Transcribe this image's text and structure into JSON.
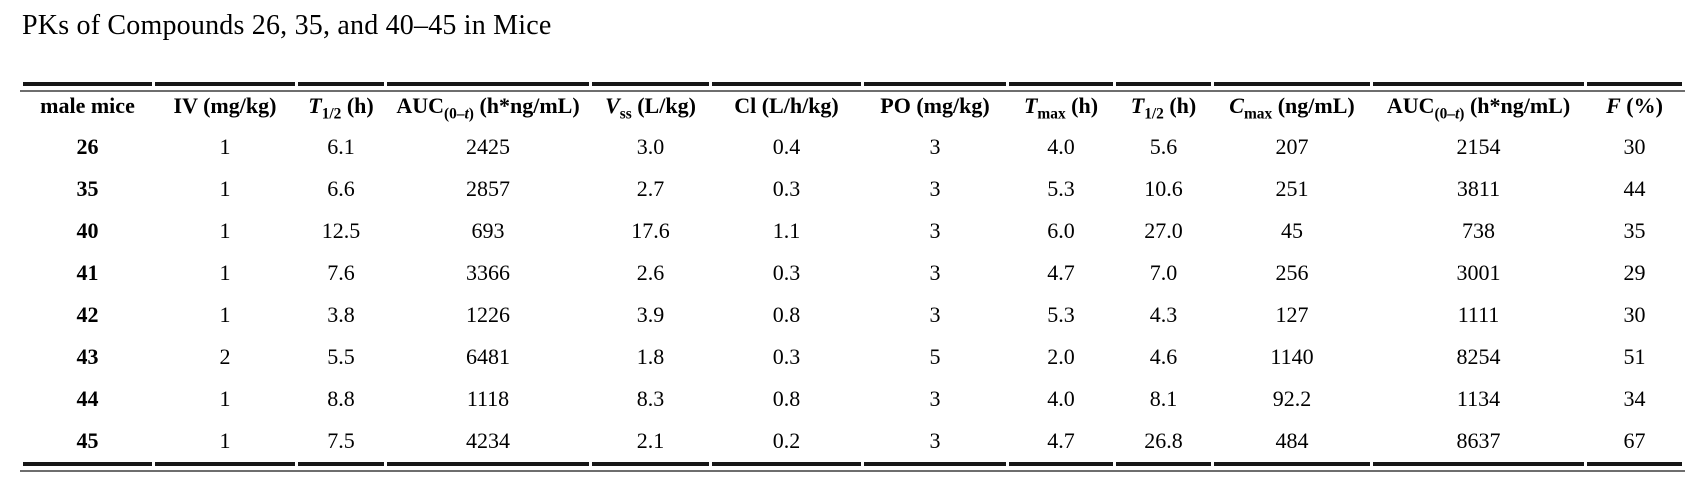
{
  "title": "PKs of Compounds 26, 35, and 40–45 in Mice",
  "colors": {
    "page_background": "#ffffff",
    "text": "#000000",
    "rule": "#161616"
  },
  "table": {
    "headers": [
      {
        "segments": [
          {
            "t": "male mice"
          }
        ]
      },
      {
        "segments": [
          {
            "t": "IV (mg/kg)"
          }
        ]
      },
      {
        "segments": [
          {
            "t": "T",
            "i": true
          },
          {
            "t": "1/2",
            "sub": true
          },
          {
            "t": " (h)"
          }
        ]
      },
      {
        "segments": [
          {
            "t": "AUC"
          },
          {
            "t": "(0–",
            "sub": true
          },
          {
            "t": "t",
            "sub": true,
            "i": true
          },
          {
            "t": ")",
            "sub": true
          },
          {
            "t": " (h*ng/mL)"
          }
        ]
      },
      {
        "segments": [
          {
            "t": "V",
            "i": true
          },
          {
            "t": "ss",
            "sub": true
          },
          {
            "t": " (L/kg)"
          }
        ]
      },
      {
        "segments": [
          {
            "t": "Cl (L/h/kg)"
          }
        ]
      },
      {
        "segments": [
          {
            "t": "PO (mg/kg)"
          }
        ]
      },
      {
        "segments": [
          {
            "t": "T",
            "i": true
          },
          {
            "t": "max",
            "sub": true
          },
          {
            "t": " (h)"
          }
        ]
      },
      {
        "segments": [
          {
            "t": "T",
            "i": true
          },
          {
            "t": "1/2",
            "sub": true
          },
          {
            "t": " (h)"
          }
        ]
      },
      {
        "segments": [
          {
            "t": "C",
            "i": true
          },
          {
            "t": "max",
            "sub": true
          },
          {
            "t": " (ng/mL)"
          }
        ]
      },
      {
        "segments": [
          {
            "t": "AUC"
          },
          {
            "t": "(0–",
            "sub": true
          },
          {
            "t": "t",
            "sub": true,
            "i": true
          },
          {
            "t": ")",
            "sub": true
          },
          {
            "t": " (h*ng/mL)"
          }
        ]
      },
      {
        "segments": [
          {
            "t": "F",
            "i": true
          },
          {
            "t": " (%)"
          }
        ]
      }
    ],
    "rows": [
      {
        "compound": "26",
        "values": [
          "1",
          "6.1",
          "2425",
          "3.0",
          "0.4",
          "3",
          "4.0",
          "5.6",
          "207",
          "2154",
          "30"
        ]
      },
      {
        "compound": "35",
        "values": [
          "1",
          "6.6",
          "2857",
          "2.7",
          "0.3",
          "3",
          "5.3",
          "10.6",
          "251",
          "3811",
          "44"
        ]
      },
      {
        "compound": "40",
        "values": [
          "1",
          "12.5",
          "693",
          "17.6",
          "1.1",
          "3",
          "6.0",
          "27.0",
          "45",
          "738",
          "35"
        ]
      },
      {
        "compound": "41",
        "values": [
          "1",
          "7.6",
          "3366",
          "2.6",
          "0.3",
          "3",
          "4.7",
          "7.0",
          "256",
          "3001",
          "29"
        ]
      },
      {
        "compound": "42",
        "values": [
          "1",
          "3.8",
          "1226",
          "3.9",
          "0.8",
          "3",
          "5.3",
          "4.3",
          "127",
          "1111",
          "30"
        ]
      },
      {
        "compound": "43",
        "values": [
          "2",
          "5.5",
          "6481",
          "1.8",
          "0.3",
          "5",
          "2.0",
          "4.6",
          "1140",
          "8254",
          "51"
        ]
      },
      {
        "compound": "44",
        "values": [
          "1",
          "8.8",
          "1118",
          "8.3",
          "0.8",
          "3",
          "4.0",
          "8.1",
          "92.2",
          "1134",
          "34"
        ]
      },
      {
        "compound": "45",
        "values": [
          "1",
          "7.5",
          "4234",
          "2.1",
          "0.2",
          "3",
          "4.7",
          "26.8",
          "484",
          "8637",
          "67"
        ]
      }
    ]
  }
}
